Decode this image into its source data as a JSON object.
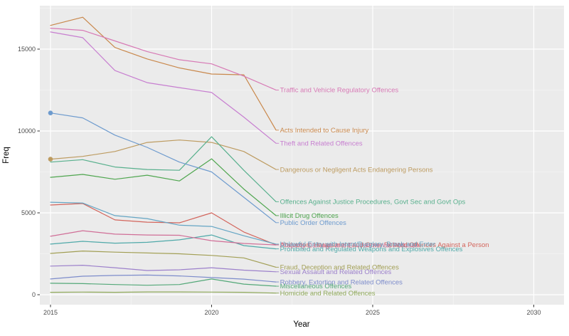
{
  "figure": {
    "background": "#FFFFFF",
    "panel_background": "#EBEBEB",
    "grid_major_color": "#FFFFFF",
    "grid_minor_color": "#FFFFFF",
    "axis_text_color": "#4D4D4D",
    "tick_mark_color": "#333333"
  },
  "chart_data": {
    "type": "line",
    "xlabel": "Year",
    "ylabel": "Freq",
    "x": [
      2015,
      2016,
      2017,
      2018,
      2019,
      2020,
      2021,
      2022
    ],
    "x_ticks": [
      2015,
      2020,
      2025,
      2030
    ],
    "x_minor_ticks": [
      2017.5,
      2022.5,
      2027.5
    ],
    "y_ticks": [
      0,
      5000,
      10000,
      15000
    ],
    "y_minor_ticks": [
      2500,
      7500,
      12500,
      17500
    ],
    "xlim": [
      2014.7,
      2030.9
    ],
    "ylim": [
      -610,
      17650
    ],
    "grid": true,
    "legend_position": "right-of-line-end-labels",
    "series": [
      {
        "name": "Abduction, Harassment and Other Related Offences Against a Person",
        "color": "#D3655C",
        "marker_first_point": false,
        "values": [
          5480,
          5570,
          4570,
          4430,
          4390,
          5000,
          3830,
          3050
        ]
      },
      {
        "name": "Acts Intended to Cause Injury",
        "color": "#C9884C",
        "marker_first_point": false,
        "values": [
          16450,
          16950,
          15100,
          14400,
          13850,
          13480,
          13430,
          10050
        ]
      },
      {
        "name": "Dangerous or Negligent Acts Endangering Persons",
        "color": "#BD9B60",
        "marker_first_point": true,
        "values": [
          8280,
          8450,
          8750,
          9300,
          9450,
          9300,
          8750,
          7650
        ]
      },
      {
        "name": "Fraud, Deception and Related Offences",
        "color": "#A29F55",
        "marker_first_point": false,
        "values": [
          2520,
          2670,
          2600,
          2550,
          2500,
          2400,
          2250,
          1680
        ]
      },
      {
        "name": "Homicide and Related Offences",
        "color": "#8FA95A",
        "marker_first_point": false,
        "values": [
          150,
          160,
          150,
          170,
          170,
          160,
          150,
          100
        ]
      },
      {
        "name": "Illicit Drug Offences",
        "color": "#4FA64F",
        "marker_first_point": false,
        "values": [
          7170,
          7350,
          7050,
          7300,
          6950,
          8300,
          6450,
          4830
        ]
      },
      {
        "name": "Miscellaneous Offences",
        "color": "#53A878",
        "marker_first_point": false,
        "values": [
          700,
          680,
          620,
          580,
          620,
          960,
          650,
          520
        ]
      },
      {
        "name": "Offences Against Justice Procedures, Govt Sec and Govt Ops",
        "color": "#58B08D",
        "marker_first_point": false,
        "values": [
          8100,
          8250,
          7800,
          7650,
          7600,
          9650,
          7600,
          5680
        ]
      },
      {
        "name": "Prohibited and Regulated Weapons and Explosives Offences",
        "color": "#4FA9A9",
        "marker_first_point": false,
        "values": [
          3090,
          3260,
          3150,
          3200,
          3350,
          3650,
          3000,
          2800
        ]
      },
      {
        "name": "Property Damage and Environmental Pollution",
        "color": "#D06E97",
        "marker_first_point": false,
        "values": [
          3570,
          3910,
          3700,
          3650,
          3630,
          3300,
          3130,
          3040
        ]
      },
      {
        "name": "Public Order Offences",
        "color": "#6E9BCE",
        "marker_first_point": true,
        "values": [
          11100,
          10800,
          9750,
          9000,
          8100,
          7500,
          5950,
          4400
        ]
      },
      {
        "name": "Robbery, Extortion and Related Offences",
        "color": "#7D8CCB",
        "marker_first_point": false,
        "values": [
          960,
          1130,
          1180,
          1200,
          1150,
          1050,
          950,
          780
        ]
      },
      {
        "name": "Sexual Assault and Related Offences",
        "color": "#9C80CB",
        "marker_first_point": false,
        "values": [
          1750,
          1800,
          1650,
          1480,
          1520,
          1650,
          1500,
          1400
        ]
      },
      {
        "name": "Theft and Related Offences",
        "color": "#C77ED0",
        "marker_first_point": false,
        "values": [
          16050,
          15700,
          13690,
          12950,
          12650,
          12350,
          10850,
          9250
        ]
      },
      {
        "name": "Traffic and Vehicle Regulatory Offences",
        "color": "#D779B5",
        "marker_first_point": false,
        "values": [
          16280,
          16150,
          15500,
          14850,
          14350,
          14100,
          13350,
          12500
        ]
      },
      {
        "name": "Unlawful Entry with Intent/Burglary, Break and Enter",
        "color": "#64A5C4",
        "marker_first_point": false,
        "values": [
          5650,
          5600,
          4830,
          4650,
          4250,
          4170,
          3600,
          3090
        ]
      }
    ]
  }
}
